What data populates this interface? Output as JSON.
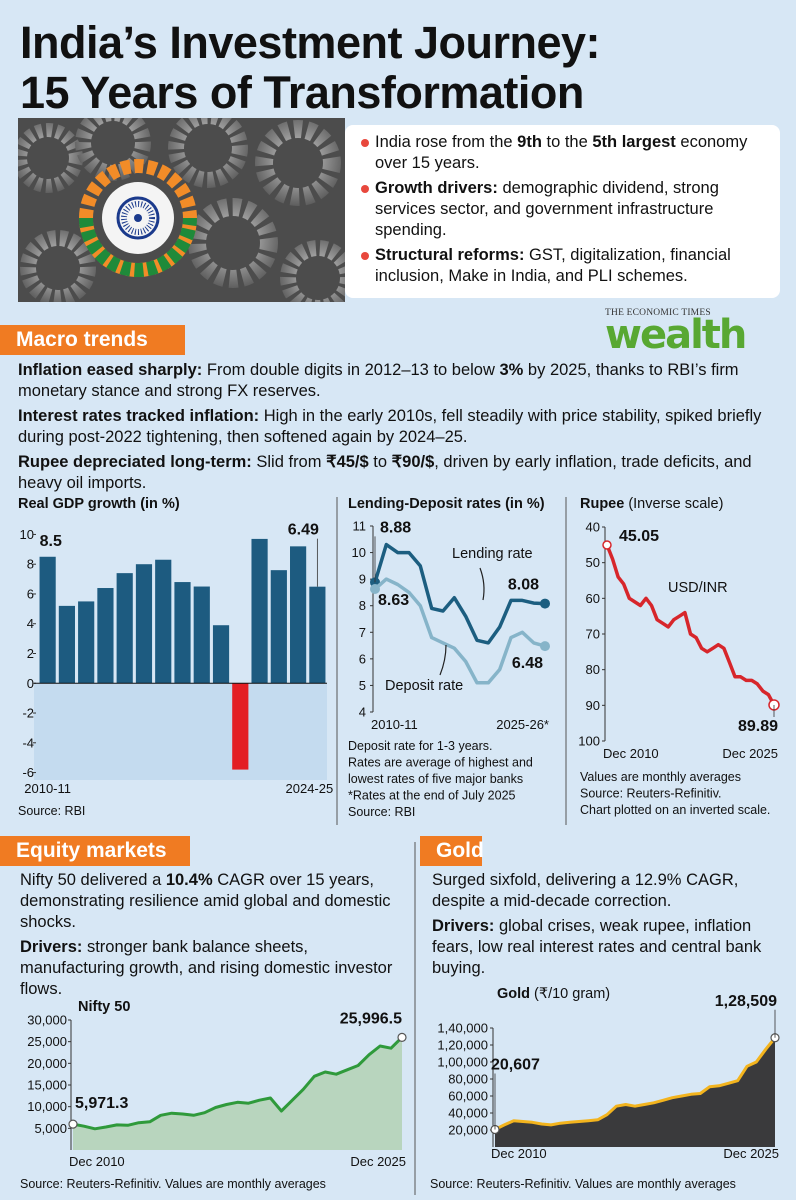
{
  "title_lines": [
    "India’s Investment Journey:",
    "15 Years of Transformation"
  ],
  "intro": {
    "bullets": [
      [
        {
          "text": "India rose from the "
        },
        {
          "text": "9th",
          "bold": true
        },
        {
          "text": " to the "
        },
        {
          "text": "5th largest",
          "bold": true
        },
        {
          "text": " economy over 15 years."
        }
      ],
      [
        {
          "text": "Growth drivers:",
          "bold": true
        },
        {
          "text": " demographic dividend, strong services sector, and government infrastructure spending."
        }
      ],
      [
        {
          "text": "Structural reforms:",
          "bold": true
        },
        {
          "text": " GST, digitalization, financial inclusion, Make in India, and PLI schemes."
        }
      ]
    ]
  },
  "logo": {
    "publisher": "THE ECONOMIC TIMES",
    "brand": "wealth"
  },
  "sections": [
    {
      "heading": "Macro trends",
      "paragraphs": [
        [
          {
            "text": "Inflation eased sharply:",
            "bold": true
          },
          {
            "text": " From double digits in 2012–13 to below "
          },
          {
            "text": "3%",
            "bold": true
          },
          {
            "text": " by 2025, thanks to RBI’s firm monetary stance and strong FX reserves."
          }
        ],
        [
          {
            "text": "Interest rates tracked inflation:",
            "bold": true
          },
          {
            "text": " High in the early 2010s, fell steadily with price stability, spiked briefly during post-2022 tightening, then softened again by 2024–25."
          }
        ],
        [
          {
            "text": "Rupee depreciated long-term:",
            "bold": true
          },
          {
            "text": " Slid from "
          },
          {
            "text": "₹45/$",
            "bold": true
          },
          {
            "text": " to "
          },
          {
            "text": "₹90/$",
            "bold": true
          },
          {
            "text": ", driven by early inflation, trade deficits, and heavy oil imports."
          }
        ]
      ]
    },
    {
      "heading": "Equity markets",
      "paragraphs": [
        [
          {
            "text": "Nifty 50 delivered a "
          },
          {
            "text": "10.4%",
            "bold": true
          },
          {
            "text": " CAGR over 15 years, demonstrating resilience amid global and domestic shocks."
          }
        ],
        [
          {
            "text": "Drivers:",
            "bold": true
          },
          {
            "text": " stronger bank balance sheets, manufacturing growth, and rising domestic investor flows."
          }
        ]
      ]
    },
    {
      "heading": "Gold",
      "paragraphs": [
        [
          {
            "text": "Surged sixfold, delivering a 12.9% CAGR, despite a mid-decade correction."
          }
        ],
        [
          {
            "text": "Drivers:",
            "bold": true
          },
          {
            "text": " global crises, weak rupee, inflation fears, low real interest rates and central bank buying."
          }
        ]
      ]
    }
  ],
  "chart_data": [
    {
      "type": "bar",
      "title": "Real GDP growth (in %)",
      "categories": [
        "2010-11",
        null,
        null,
        null,
        null,
        null,
        null,
        null,
        null,
        null,
        null,
        null,
        null,
        null,
        "2024-25"
      ],
      "values": [
        8.5,
        5.2,
        5.5,
        6.4,
        7.4,
        8.0,
        8.3,
        6.8,
        6.5,
        3.9,
        -5.8,
        9.7,
        7.6,
        9.2,
        6.49
      ],
      "value_labels": [
        "8.5",
        null,
        null,
        null,
        null,
        null,
        null,
        null,
        null,
        null,
        null,
        null,
        null,
        null,
        "6.49"
      ],
      "color": "#1d5b80",
      "negative_color": "#e31e24",
      "negative_region_color": "#c4dbef",
      "ylim": [
        -6.5,
        10.5
      ],
      "yticks": [
        -6,
        -4,
        -2,
        0,
        2,
        4,
        6,
        8,
        10
      ],
      "notes": [
        "Source: RBI"
      ]
    },
    {
      "type": "line",
      "title": "Lending-Deposit rates (in %)",
      "categories": [
        "2010-11",
        null,
        null,
        null,
        null,
        null,
        null,
        null,
        null,
        null,
        null,
        null,
        null,
        null,
        null,
        "2025-26*"
      ],
      "series": [
        {
          "name": "Lending rate",
          "color": "#1c5e80",
          "values": [
            8.88,
            10.3,
            10.0,
            10.0,
            9.5,
            7.9,
            7.8,
            8.3,
            7.6,
            6.7,
            6.6,
            7.2,
            8.2,
            8.2,
            8.1,
            8.08
          ],
          "value_labels": [
            "8.88",
            null,
            null,
            null,
            null,
            null,
            null,
            null,
            null,
            null,
            null,
            null,
            null,
            null,
            null,
            "8.08"
          ]
        },
        {
          "name": "Deposit rate",
          "color": "#86b4c9",
          "values": [
            8.63,
            9.0,
            8.8,
            8.5,
            8.0,
            6.8,
            6.6,
            6.4,
            5.9,
            5.1,
            5.1,
            5.6,
            6.8,
            7.0,
            6.6,
            6.48
          ],
          "value_labels": [
            "8.63",
            null,
            null,
            null,
            null,
            null,
            null,
            null,
            null,
            null,
            null,
            null,
            null,
            null,
            null,
            "6.48"
          ]
        }
      ],
      "ylim": [
        4,
        11
      ],
      "yticks": [
        4,
        5,
        6,
        7,
        8,
        9,
        10,
        11
      ],
      "notes": [
        "Deposit rate for 1-3 years.",
        "Rates are average of highest and",
        "lowest rates of five major banks",
        "*Rates at the end of July 2025",
        "Source: RBI"
      ]
    },
    {
      "type": "line",
      "title": "Rupee",
      "subtitle": "(Inverse scale)",
      "categories": [
        "Dec 2010",
        null,
        null,
        null,
        null,
        null,
        null,
        null,
        null,
        null,
        null,
        null,
        null,
        null,
        null,
        null,
        null,
        null,
        null,
        null,
        null,
        null,
        null,
        null,
        null,
        null,
        null,
        null,
        null,
        null,
        "Dec 2025"
      ],
      "series": [
        {
          "name": "USD/INR",
          "color": "#d7262b",
          "values": [
            45.05,
            49,
            54,
            56,
            60,
            61,
            62,
            60,
            62,
            66,
            67,
            68,
            66,
            65,
            64,
            70,
            71,
            74,
            75,
            74,
            73,
            74,
            78,
            82,
            82,
            83,
            83,
            84,
            86,
            87,
            89.89
          ],
          "value_labels": [
            "45.05",
            null,
            null,
            null,
            null,
            null,
            null,
            null,
            null,
            null,
            null,
            null,
            null,
            null,
            null,
            null,
            null,
            null,
            null,
            null,
            null,
            null,
            null,
            null,
            null,
            null,
            null,
            null,
            null,
            null,
            "89.89"
          ]
        }
      ],
      "ylim": [
        40,
        100
      ],
      "inverted": true,
      "yticks": [
        40,
        50,
        60,
        70,
        80,
        90,
        100
      ],
      "notes": [
        "Values are monthly averages",
        "Source: Reuters-Refinitiv.",
        "Chart plotted on an inverted scale."
      ]
    },
    {
      "type": "area",
      "title": "Nifty 50",
      "categories": [
        "Dec 2010",
        null,
        null,
        null,
        null,
        null,
        null,
        null,
        null,
        null,
        null,
        null,
        null,
        null,
        null,
        null,
        null,
        null,
        null,
        null,
        null,
        null,
        null,
        null,
        null,
        null,
        null,
        null,
        null,
        null,
        "Dec 2025"
      ],
      "values": [
        5971.3,
        5500,
        4900,
        5300,
        5800,
        5700,
        6300,
        6500,
        8000,
        8500,
        8300,
        8000,
        8600,
        9800,
        10500,
        11000,
        10800,
        11500,
        12000,
        9000,
        11500,
        14000,
        17000,
        18000,
        17500,
        18500,
        19500,
        22000,
        24000,
        23500,
        25996.5
      ],
      "value_labels": [
        "5,971.3",
        null,
        null,
        null,
        null,
        null,
        null,
        null,
        null,
        null,
        null,
        null,
        null,
        null,
        null,
        null,
        null,
        null,
        null,
        null,
        null,
        null,
        null,
        null,
        null,
        null,
        null,
        null,
        null,
        null,
        "25,996.5"
      ],
      "color": "#2f9a3b",
      "fill_color": "#b8d5be",
      "ylim": [
        0,
        30000
      ],
      "yticks": [
        {
          "value": 5000,
          "label": "5,000"
        },
        {
          "value": 10000,
          "label": "10,000"
        },
        {
          "value": 15000,
          "label": "15,000"
        },
        {
          "value": 20000,
          "label": "20,000"
        },
        {
          "value": 25000,
          "label": "25,000"
        },
        {
          "value": 30000,
          "label": "30,000"
        }
      ],
      "notes": [
        "Source: Reuters-Refinitiv. Values are monthly averages"
      ]
    },
    {
      "type": "area",
      "title": "Gold",
      "subtitle": "(₹/10 gram)",
      "categories": [
        "Dec 2010",
        null,
        null,
        null,
        null,
        null,
        null,
        null,
        null,
        null,
        null,
        null,
        null,
        null,
        null,
        null,
        null,
        null,
        null,
        null,
        null,
        null,
        null,
        null,
        null,
        null,
        null,
        null,
        null,
        null,
        "Dec 2025"
      ],
      "values": [
        20607,
        26000,
        31000,
        30000,
        29000,
        27000,
        26000,
        28000,
        29000,
        30000,
        31000,
        32000,
        38000,
        48000,
        50000,
        48000,
        50000,
        52000,
        55000,
        58000,
        60000,
        62000,
        63000,
        71000,
        72000,
        75000,
        78000,
        95000,
        100000,
        115000,
        128509
      ],
      "value_labels": [
        "20,607",
        null,
        null,
        null,
        null,
        null,
        null,
        null,
        null,
        null,
        null,
        null,
        null,
        null,
        null,
        null,
        null,
        null,
        null,
        null,
        null,
        null,
        null,
        null,
        null,
        null,
        null,
        null,
        null,
        null,
        "1,28,509"
      ],
      "color": "#f3b41e",
      "fill_color": "#3a3a3c",
      "ylim": [
        0,
        140000
      ],
      "yticks": [
        {
          "value": 20000,
          "label": "20,000"
        },
        {
          "value": 40000,
          "label": "40,000"
        },
        {
          "value": 60000,
          "label": "60,000"
        },
        {
          "value": 80000,
          "label": "80,000"
        },
        {
          "value": 100000,
          "label": "1,00,000"
        },
        {
          "value": 120000,
          "label": "1,20,000"
        },
        {
          "value": 140000,
          "label": "1,40,000"
        }
      ],
      "notes": [
        "Source: Reuters-Refinitiv. Values are monthly averages"
      ]
    }
  ]
}
